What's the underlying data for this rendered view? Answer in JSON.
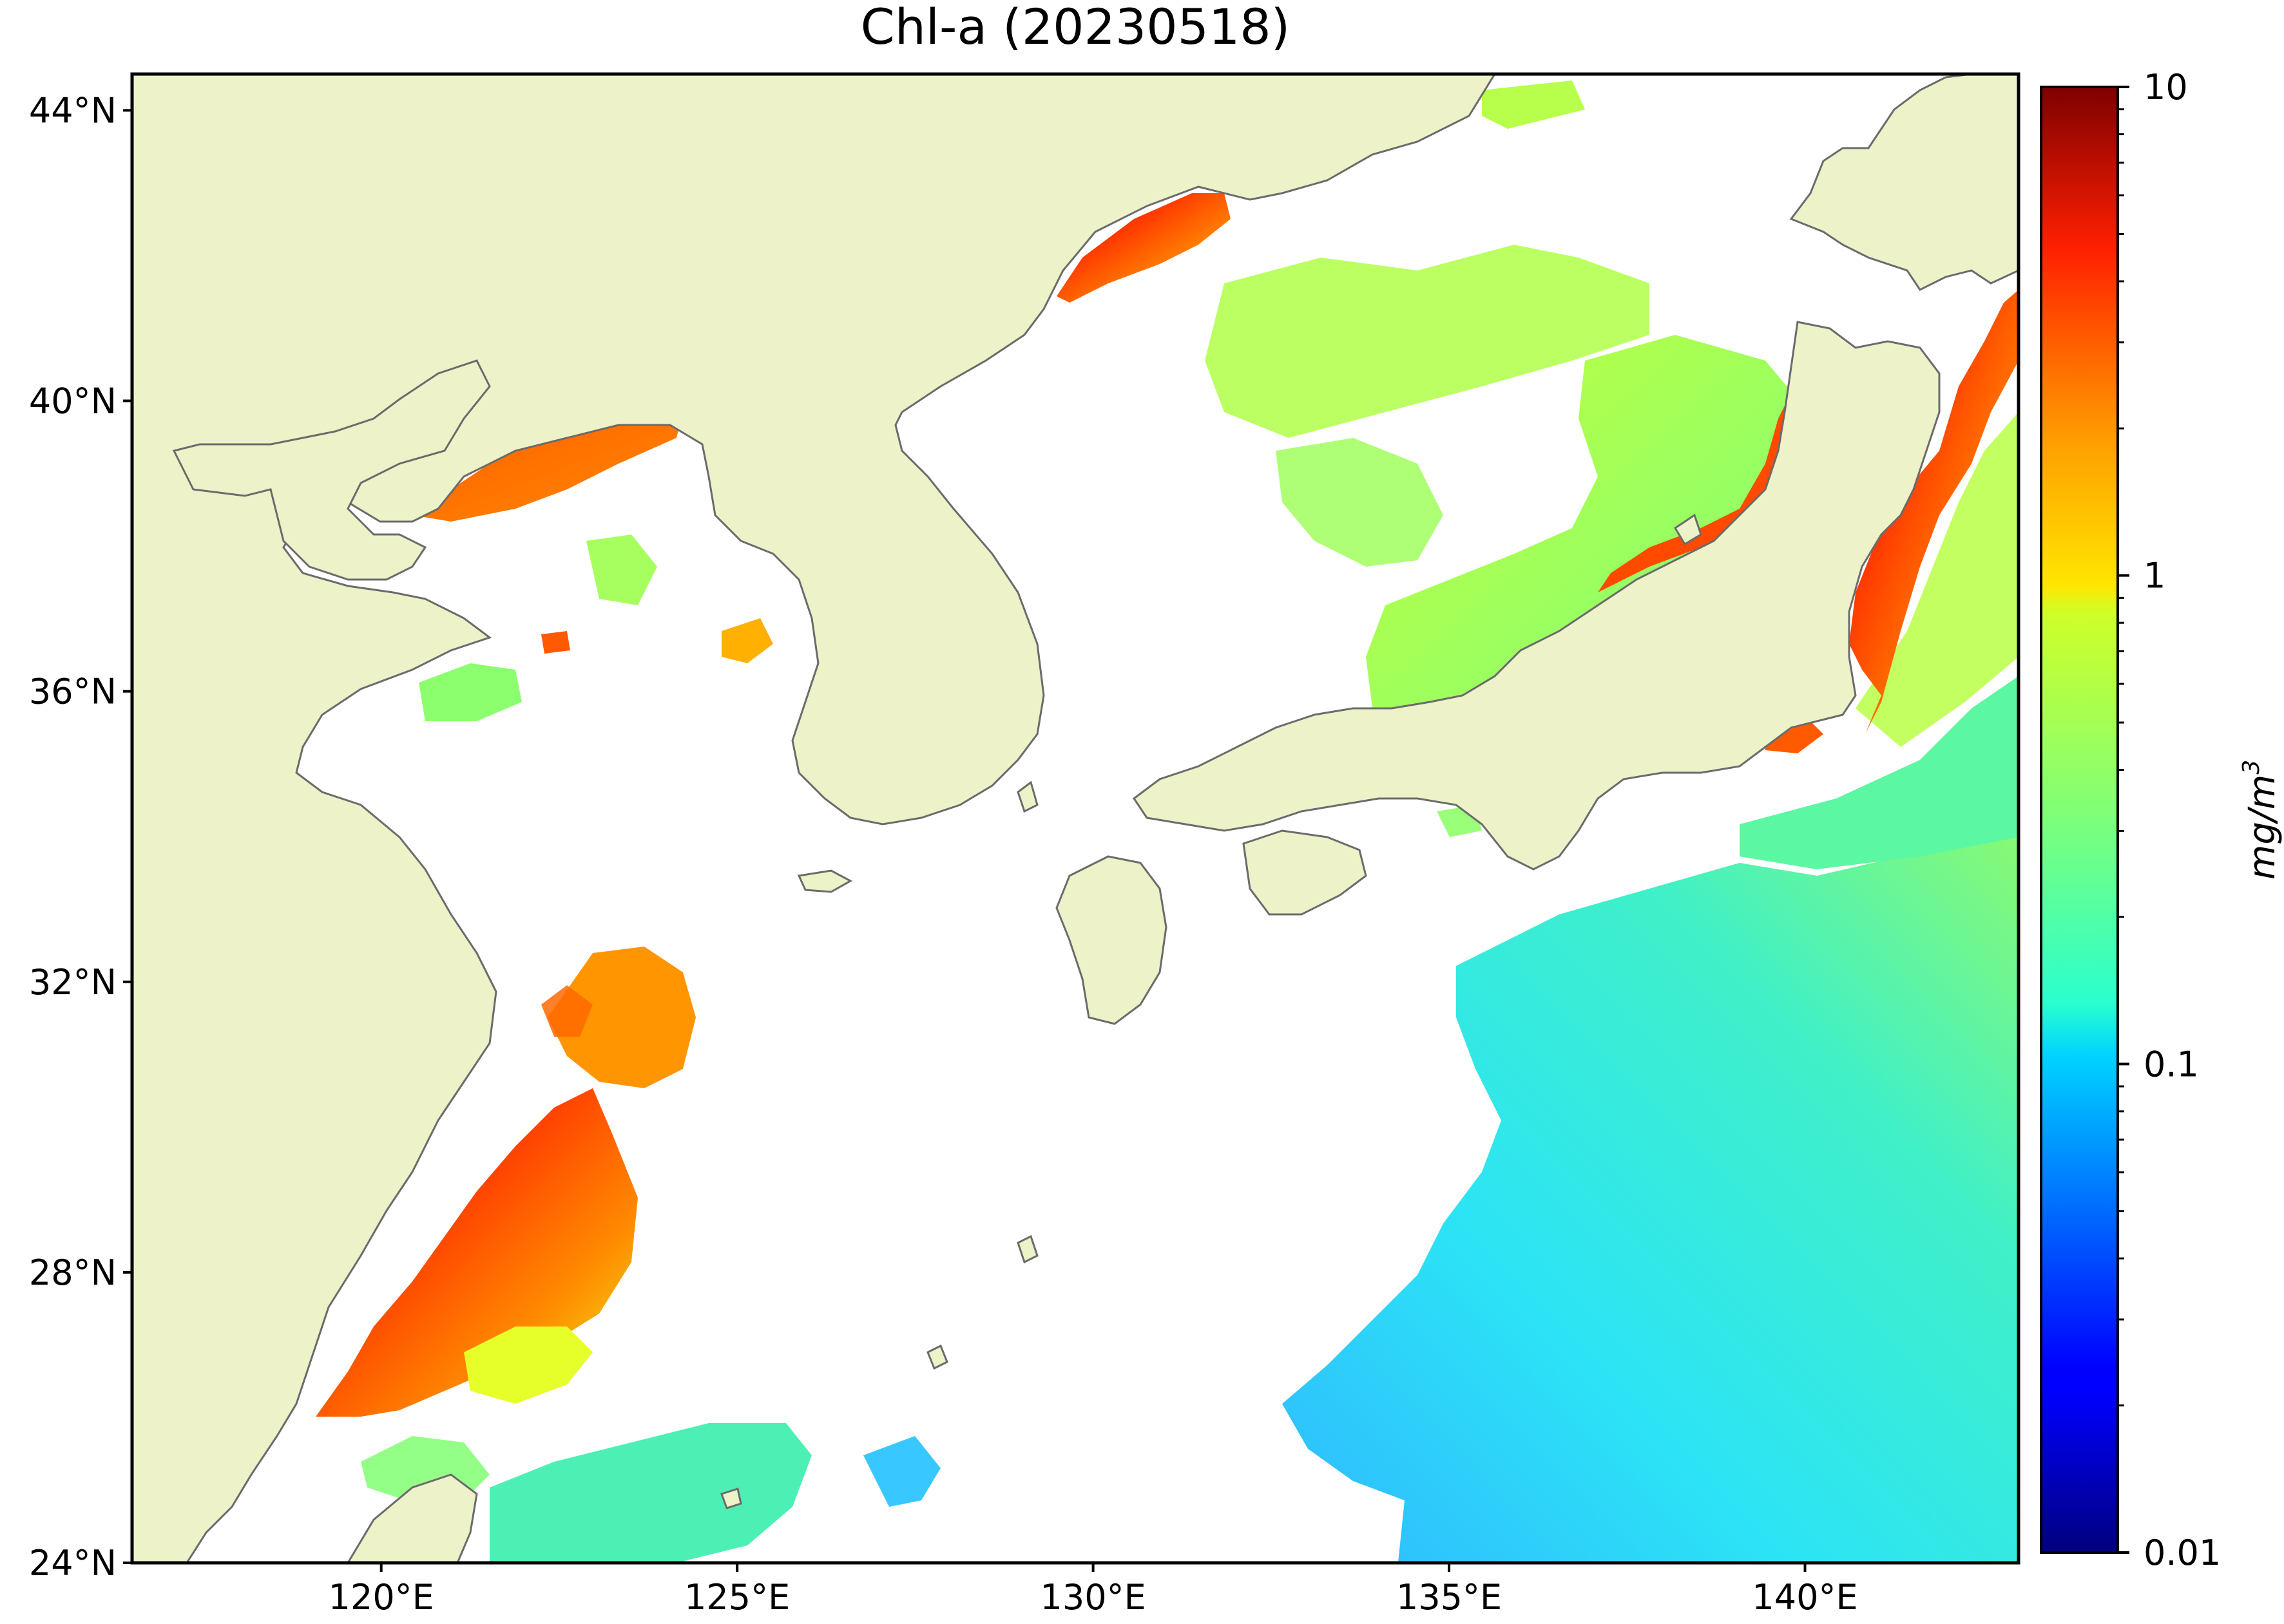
{
  "title": "Chl-a (20230518)",
  "map": {
    "projection": "lon-lat",
    "lon_range": [
      116.5,
      143.0
    ],
    "lat_range": [
      24.0,
      44.5
    ],
    "land_color": "#eef2c9",
    "coast_color": "#6b6b6b",
    "no_data_color": "#ffffff",
    "lat_ticks": [
      {
        "value": 24,
        "label": "24°N"
      },
      {
        "value": 28,
        "label": "28°N"
      },
      {
        "value": 32,
        "label": "32°N"
      },
      {
        "value": 36,
        "label": "36°N"
      },
      {
        "value": 40,
        "label": "40°N"
      },
      {
        "value": 44,
        "label": "44°N"
      }
    ],
    "lon_ticks": [
      {
        "value": 120,
        "label": "120°E"
      },
      {
        "value": 125,
        "label": "125°E"
      },
      {
        "value": 130,
        "label": "130°E"
      },
      {
        "value": 135,
        "label": "135°E"
      },
      {
        "value": 140,
        "label": "140°E"
      }
    ]
  },
  "colorbar": {
    "label": "mg/m",
    "label_superscript": "3",
    "scale": "log",
    "range": [
      0.01,
      10
    ],
    "colormap": "jet",
    "ticks": [
      {
        "value": 10,
        "label": "10"
      },
      {
        "value": 1,
        "label": "1"
      },
      {
        "value": 0.1,
        "label": "0.1"
      },
      {
        "value": 0.01,
        "label": "0.01"
      }
    ]
  }
}
